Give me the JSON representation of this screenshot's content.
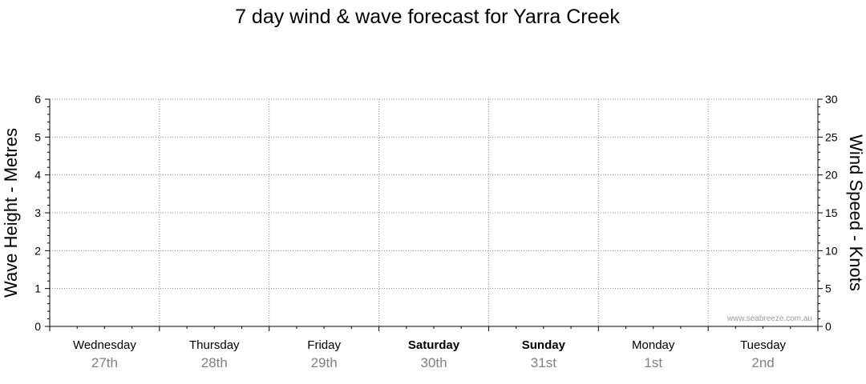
{
  "chart_data": {
    "type": "line",
    "title": "7 day wind & wave forecast for Yarra Creek",
    "ylabel_left": "Wave Height - Metres",
    "ylabel_right": "Wind Speed - Knots",
    "ylim_left": [
      0,
      6
    ],
    "ylim_right": [
      0,
      30
    ],
    "left_ticks": [
      "0",
      "1",
      "2",
      "3",
      "4",
      "5",
      "6"
    ],
    "right_ticks": [
      "0",
      "5",
      "10",
      "15",
      "20",
      "25",
      "30"
    ],
    "days": [
      {
        "name": "Wednesday",
        "date": "27th",
        "bold": false
      },
      {
        "name": "Thursday",
        "date": "28th",
        "bold": false
      },
      {
        "name": "Friday",
        "date": "29th",
        "bold": false
      },
      {
        "name": "Saturday",
        "date": "30th",
        "bold": true
      },
      {
        "name": "Sunday",
        "date": "31st",
        "bold": true
      },
      {
        "name": "Monday",
        "date": "1st",
        "bold": false
      },
      {
        "name": "Tuesday",
        "date": "2nd",
        "bold": false
      }
    ],
    "grid": true,
    "series": [],
    "watermark": "www.seabreeze.com.au"
  },
  "colors": {
    "axis": "#000000",
    "grid": "#888888",
    "date_text": "#808080",
    "watermark": "#999999"
  }
}
